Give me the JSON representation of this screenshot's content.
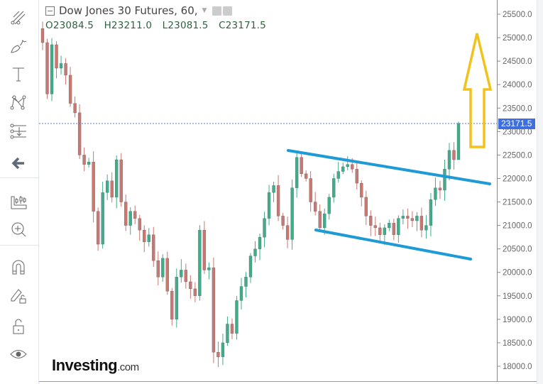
{
  "legend": {
    "symbol_title": "Dow Jones 30 Futures, 60,",
    "open": "O23084.5",
    "high": "H23211.0",
    "low": "L23081.5",
    "close": "C23171.5"
  },
  "toolbar": {
    "items": [
      {
        "icon": "trend-line-icon"
      },
      {
        "icon": "brush-icon"
      },
      {
        "icon": "text-icon"
      },
      {
        "icon": "pattern-icon"
      },
      {
        "icon": "prediction-measure-icon"
      },
      {
        "icon": "arrow-left-icon"
      },
      {
        "icon": "candles-ruler-icon"
      },
      {
        "icon": "zoom-in-icon"
      },
      {
        "icon": "magnet-icon"
      },
      {
        "icon": "pencil-lock-icon"
      },
      {
        "icon": "unlock-icon"
      },
      {
        "icon": "eye-icon"
      }
    ]
  },
  "logo": {
    "brand": "Investing",
    "domain": ".com"
  },
  "chart_data": {
    "type": "candlestick",
    "title": "Dow Jones 30 Futures, 60,",
    "ylim": [
      17800,
      25750
    ],
    "yticks": [
      "25500.0",
      "25000.0",
      "24500.0",
      "24000.0",
      "23500.0",
      "23000.0",
      "22500.0",
      "22000.0",
      "21500.0",
      "21000.0",
      "20500.0",
      "20000.0",
      "19500.0",
      "19000.0",
      "18500.0",
      "18000.0"
    ],
    "ytick_values": [
      25500,
      25000,
      24500,
      24000,
      23500,
      23000,
      22500,
      22000,
      21500,
      21000,
      20500,
      20000,
      19500,
      19000,
      18500,
      18000
    ],
    "last_price": 23171.5,
    "last_price_label": "23171.5",
    "last_bar": {
      "open": 23084.5,
      "high": 23211.0,
      "low": 23081.5,
      "close": 23171.5
    },
    "closes": [
      24895,
      23800,
      24850,
      24350,
      24450,
      24200,
      23600,
      23400,
      22500,
      22300,
      22350,
      21300,
      20600,
      21700,
      21950,
      21600,
      22400,
      21500,
      21000,
      21300,
      21150,
      20900,
      20650,
      20800,
      20250,
      19900,
      20300,
      19600,
      19000,
      19900,
      20050,
      19800,
      19650,
      19500,
      20900,
      20050,
      20100,
      18300,
      18200,
      18500,
      18900,
      18700,
      19400,
      19700,
      19900,
      20350,
      20500,
      20750,
      21150,
      21700,
      21850,
      21200,
      21000,
      20700,
      21800,
      22450,
      22100,
      22000,
      21500,
      21300,
      20950,
      21250,
      21600,
      22000,
      22150,
      22250,
      22300,
      22200,
      21900,
      21600,
      21200,
      21000,
      20950,
      20800,
      20950,
      21050,
      20800,
      21150,
      21200,
      21150,
      21100,
      21200,
      20900,
      21000,
      21550,
      21800,
      21750,
      22200,
      22600,
      22400,
      23171.5
    ],
    "colors": {
      "up": "#3fae88",
      "down": "#c9786f",
      "trendline": "#1e9ad6",
      "arrow": "#f2c21b",
      "price_line": "#5b6fd6",
      "price_label_bg": "#3d6fe0"
    },
    "annotations": [
      {
        "type": "trend-line",
        "name": "upper-channel-line"
      },
      {
        "type": "trend-line",
        "name": "lower-channel-line"
      },
      {
        "type": "arrow-up",
        "name": "breakout-arrow"
      }
    ],
    "grid": false
  }
}
